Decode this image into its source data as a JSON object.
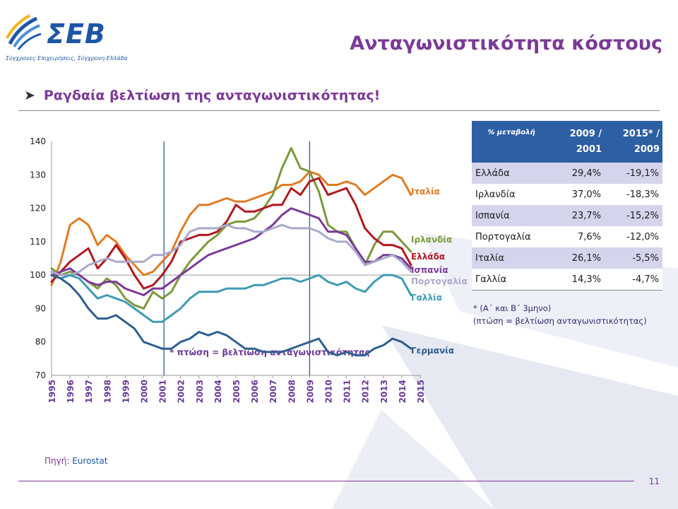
{
  "header": {
    "logo_text": "ΣΕΒ",
    "logo_tagline": "Σύγχρονες Επιχειρήσεις, Σύγχρονη Ελλάδα",
    "title": "Ανταγωνιστικότητα κόστους"
  },
  "bullet": "Ραγδαία βελτίωση της ανταγωνιστικότητας!",
  "chart_data": {
    "type": "line",
    "title": "",
    "xlabel": "",
    "ylabel": "",
    "ylim": [
      70,
      140
    ],
    "yticks": [
      70,
      80,
      90,
      100,
      110,
      120,
      130,
      140
    ],
    "xlim": [
      1995,
      2015
    ],
    "xticks": [
      "1995",
      "1996",
      "1997",
      "1998",
      "1999",
      "2000",
      "2001",
      "2002",
      "2003",
      "2004",
      "2005",
      "2006",
      "2007",
      "2008",
      "2009",
      "2010",
      "2011",
      "2012",
      "2013",
      "2014",
      "2015"
    ],
    "reference_line": 100,
    "vertical_markers": [
      2001.1,
      2009.0
    ],
    "annotation": "* πτώση = βελτίωση ανταγωνιστικότητας",
    "grid": false,
    "legend": "line-end labels (right)",
    "series": [
      {
        "name": "Ιταλία",
        "color": "#e07b22",
        "x": [
          1995,
          1995.5,
          1996,
          1996.5,
          1997,
          1997.5,
          1998,
          1998.5,
          1999,
          1999.5,
          2000,
          2000.5,
          2001,
          2001.5,
          2002,
          2002.5,
          2003,
          2003.5,
          2004,
          2004.5,
          2005,
          2005.5,
          2006,
          2006.5,
          2007,
          2007.5,
          2008,
          2008.5,
          2009,
          2009.5,
          2010,
          2010.5,
          2011,
          2011.5,
          2012,
          2012.5,
          2013,
          2013.5,
          2014,
          2014.5
        ],
        "y": [
          97,
          104,
          115,
          117,
          115,
          109,
          112,
          110,
          106,
          103,
          100,
          101,
          104,
          107,
          113,
          118,
          121,
          121,
          122,
          123,
          122,
          122,
          123,
          124,
          125,
          127,
          127,
          128,
          131,
          130,
          127,
          127,
          128,
          127,
          124,
          126,
          128,
          130,
          129,
          124
        ]
      },
      {
        "name": "Ιρλανδία",
        "color": "#7a9a3a",
        "x": [
          1995,
          1995.5,
          1996,
          1996.5,
          1997,
          1997.5,
          1998,
          1998.5,
          1999,
          1999.5,
          2000,
          2000.5,
          2001,
          2001.5,
          2002,
          2002.5,
          2003,
          2003.5,
          2004,
          2004.5,
          2005,
          2005.5,
          2006,
          2006.5,
          2007,
          2007.5,
          2008,
          2008.5,
          2009,
          2009.5,
          2010,
          2010.5,
          2011,
          2011.5,
          2012,
          2012.5,
          2013,
          2013.5,
          2014,
          2014.5
        ],
        "y": [
          102,
          100,
          101,
          100,
          98,
          96,
          99,
          97,
          93,
          91,
          90,
          95,
          93,
          95,
          100,
          104,
          107,
          110,
          112,
          115,
          116,
          116,
          117,
          120,
          124,
          132,
          138,
          132,
          131,
          125,
          115,
          113,
          113,
          108,
          103,
          109,
          113,
          113,
          110,
          107
        ]
      },
      {
        "name": "Ελλάδα",
        "color": "#b0181e",
        "x": [
          1995,
          1995.5,
          1996,
          1996.5,
          1997,
          1997.5,
          1998,
          1998.5,
          1999,
          1999.5,
          2000,
          2000.5,
          2001,
          2001.5,
          2002,
          2002.5,
          2003,
          2003.5,
          2004,
          2004.5,
          2005,
          2005.5,
          2006,
          2006.5,
          2007,
          2007.5,
          2008,
          2008.5,
          2009,
          2009.5,
          2010,
          2010.5,
          2011,
          2011.5,
          2012,
          2012.5,
          2013,
          2013.5,
          2014,
          2014.5
        ],
        "y": [
          98,
          101,
          104,
          106,
          108,
          102,
          105,
          109,
          105,
          100,
          96,
          97,
          100,
          104,
          110,
          111,
          112,
          112,
          113,
          116,
          121,
          119,
          119,
          120,
          121,
          121,
          126,
          124,
          128,
          129,
          124,
          125,
          126,
          121,
          114,
          111,
          109,
          109,
          108,
          103
        ]
      },
      {
        "name": "Ισπανία",
        "color": "#7b3a96",
        "x": [
          1995,
          1995.5,
          1996,
          1996.5,
          1997,
          1997.5,
          1998,
          1998.5,
          1999,
          1999.5,
          2000,
          2000.5,
          2001,
          2001.5,
          2002,
          2002.5,
          2003,
          2003.5,
          2004,
          2004.5,
          2005,
          2005.5,
          2006,
          2006.5,
          2007,
          2007.5,
          2008,
          2008.5,
          2009,
          2009.5,
          2010,
          2010.5,
          2011,
          2011.5,
          2012,
          2012.5,
          2013,
          2013.5,
          2014,
          2014.5
        ],
        "y": [
          100,
          101,
          102,
          100,
          98,
          97,
          98,
          98,
          96,
          95,
          94,
          96,
          96,
          98,
          100,
          102,
          104,
          106,
          107,
          108,
          109,
          110,
          111,
          113,
          115,
          118,
          120,
          119,
          118,
          117,
          113,
          113,
          112,
          108,
          104,
          104,
          106,
          106,
          105,
          102
        ]
      },
      {
        "name": "Πορτογαλία",
        "color": "#a9a9cc",
        "x": [
          1995,
          1995.5,
          1996,
          1996.5,
          1997,
          1997.5,
          1998,
          1998.5,
          1999,
          1999.5,
          2000,
          2000.5,
          2001,
          2001.5,
          2002,
          2002.5,
          2003,
          2003.5,
          2004,
          2004.5,
          2005,
          2005.5,
          2006,
          2006.5,
          2007,
          2007.5,
          2008,
          2008.5,
          2009,
          2009.5,
          2010,
          2010.5,
          2011,
          2011.5,
          2012,
          2012.5,
          2013,
          2013.5,
          2014,
          2014.5
        ],
        "y": [
          101,
          100,
          100,
          101,
          103,
          104,
          105,
          104,
          104,
          104,
          104,
          106,
          106,
          107,
          109,
          113,
          114,
          114,
          114,
          115,
          114,
          114,
          113,
          113,
          114,
          115,
          114,
          114,
          114,
          113,
          111,
          110,
          110,
          107,
          103,
          104,
          105,
          106,
          104,
          101
        ]
      },
      {
        "name": "Γαλλία",
        "color": "#3e9bb3",
        "x": [
          1995,
          1995.5,
          1996,
          1996.5,
          1997,
          1997.5,
          1998,
          1998.5,
          1999,
          1999.5,
          2000,
          2000.5,
          2001,
          2001.5,
          2002,
          2002.5,
          2003,
          2003.5,
          2004,
          2004.5,
          2005,
          2005.5,
          2006,
          2006.5,
          2007,
          2007.5,
          2008,
          2008.5,
          2009,
          2009.5,
          2010,
          2010.5,
          2011,
          2011.5,
          2012,
          2012.5,
          2013,
          2013.5,
          2014,
          2014.5
        ],
        "y": [
          100,
          99,
          100,
          99,
          96,
          93,
          94,
          93,
          92,
          90,
          88,
          86,
          86,
          88,
          90,
          93,
          95,
          95,
          95,
          96,
          96,
          96,
          97,
          97,
          98,
          99,
          99,
          98,
          99,
          100,
          98,
          97,
          98,
          96,
          95,
          98,
          100,
          100,
          99,
          94
        ]
      },
      {
        "name": "Γερμανία",
        "color": "#2e5f8f",
        "x": [
          1995,
          1995.5,
          1996,
          1996.5,
          1997,
          1997.5,
          1998,
          1998.5,
          1999,
          1999.5,
          2000,
          2000.5,
          2001,
          2001.5,
          2002,
          2002.5,
          2003,
          2003.5,
          2004,
          2004.5,
          2005,
          2005.5,
          2006,
          2006.5,
          2007,
          2007.5,
          2008,
          2008.5,
          2009,
          2009.5,
          2010,
          2010.5,
          2011,
          2011.5,
          2012,
          2012.5,
          2013,
          2013.5,
          2014,
          2014.5
        ],
        "y": [
          100,
          99,
          97,
          94,
          90,
          87,
          87,
          88,
          86,
          84,
          80,
          79,
          78,
          78,
          80,
          81,
          83,
          82,
          83,
          82,
          80,
          78,
          78,
          77,
          77,
          77,
          78,
          79,
          80,
          81,
          77,
          76,
          77,
          76,
          76,
          78,
          79,
          81,
          80,
          78
        ]
      }
    ]
  },
  "table": {
    "headers": [
      "% μεταβολή",
      "2009 / 2001",
      "2015* / 2009"
    ],
    "rows": [
      [
        "Ελλάδα",
        "29,4%",
        "-19,1%"
      ],
      [
        "Ιρλανδία",
        "37,0%",
        "-18,3%"
      ],
      [
        "Ισπανία",
        "23,7%",
        "-15,2%"
      ],
      [
        "Πορτογαλία",
        "7,6%",
        "-12,0%"
      ],
      [
        "Ιταλία",
        "26,1%",
        "-5,5%"
      ],
      [
        "Γαλλία",
        "14,3%",
        "-4,7%"
      ]
    ]
  },
  "table_note": {
    "line1": "* (Α΄ και Β΄ 3μηνο)",
    "line2": "(πτώση = βελτίωση ανταγωνιστικότητας)"
  },
  "source": {
    "label": "Πηγή:",
    "value": "Eurostat"
  },
  "page_number": "11",
  "colors": {
    "accent_purple": "#7b3a96",
    "brand_blue": "#1d56a6",
    "table_header": "#2e5fa3",
    "table_stripe": "#d4d5ec"
  }
}
